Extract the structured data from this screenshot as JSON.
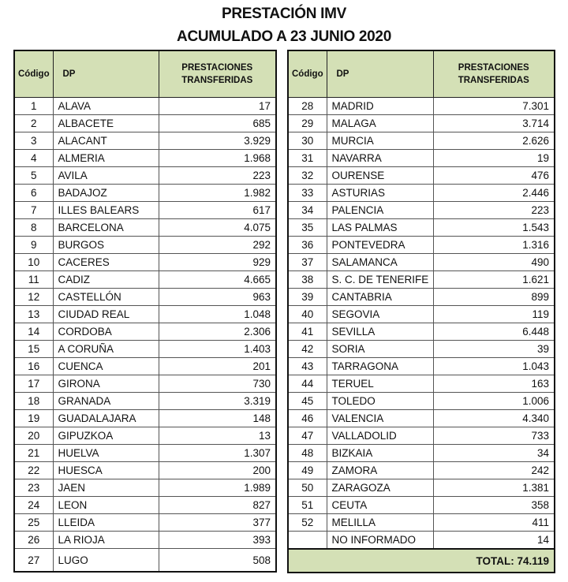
{
  "title": "PRESTACIÓN IMV",
  "subtitle": "ACUMULADO A 23 JUNIO 2020",
  "headers": {
    "code": "Código",
    "dp": "DP",
    "value": "PRESTACIONES TRANSFERIDAS"
  },
  "left_rows": [
    {
      "code": "1",
      "dp": "ALAVA",
      "value": "17"
    },
    {
      "code": "2",
      "dp": "ALBACETE",
      "value": "685"
    },
    {
      "code": "3",
      "dp": "ALACANT",
      "value": "3.929"
    },
    {
      "code": "4",
      "dp": "ALMERIA",
      "value": "1.968"
    },
    {
      "code": "5",
      "dp": "AVILA",
      "value": "223"
    },
    {
      "code": "6",
      "dp": "BADAJOZ",
      "value": "1.982"
    },
    {
      "code": "7",
      "dp": "ILLES BALEARS",
      "value": "617"
    },
    {
      "code": "8",
      "dp": "BARCELONA",
      "value": "4.075"
    },
    {
      "code": "9",
      "dp": "BURGOS",
      "value": "292"
    },
    {
      "code": "10",
      "dp": "CACERES",
      "value": "929"
    },
    {
      "code": "11",
      "dp": "CADIZ",
      "value": "4.665"
    },
    {
      "code": "12",
      "dp": "CASTELLÓN",
      "value": "963"
    },
    {
      "code": "13",
      "dp": "CIUDAD REAL",
      "value": "1.048"
    },
    {
      "code": "14",
      "dp": "CORDOBA",
      "value": "2.306"
    },
    {
      "code": "15",
      "dp": "A CORUÑA",
      "value": "1.403"
    },
    {
      "code": "16",
      "dp": "CUENCA",
      "value": "201"
    },
    {
      "code": "17",
      "dp": "GIRONA",
      "value": "730"
    },
    {
      "code": "18",
      "dp": "GRANADA",
      "value": "3.319"
    },
    {
      "code": "19",
      "dp": "GUADALAJARA",
      "value": "148"
    },
    {
      "code": "20",
      "dp": "GIPUZKOA",
      "value": "13"
    },
    {
      "code": "21",
      "dp": "HUELVA",
      "value": "1.307"
    },
    {
      "code": "22",
      "dp": "HUESCA",
      "value": "200"
    },
    {
      "code": "23",
      "dp": "JAEN",
      "value": "1.989"
    },
    {
      "code": "24",
      "dp": "LEON",
      "value": "827"
    },
    {
      "code": "25",
      "dp": "LLEIDA",
      "value": "377"
    },
    {
      "code": "26",
      "dp": "LA RIOJA",
      "value": "393"
    },
    {
      "code": "27",
      "dp": "LUGO",
      "value": "508"
    }
  ],
  "right_rows": [
    {
      "code": "28",
      "dp": "MADRID",
      "value": "7.301"
    },
    {
      "code": "29",
      "dp": "MALAGA",
      "value": "3.714"
    },
    {
      "code": "30",
      "dp": "MURCIA",
      "value": "2.626"
    },
    {
      "code": "31",
      "dp": "NAVARRA",
      "value": "19"
    },
    {
      "code": "32",
      "dp": "OURENSE",
      "value": "476"
    },
    {
      "code": "33",
      "dp": "ASTURIAS",
      "value": "2.446"
    },
    {
      "code": "34",
      "dp": "PALENCIA",
      "value": "223"
    },
    {
      "code": "35",
      "dp": "LAS PALMAS",
      "value": "1.543"
    },
    {
      "code": "36",
      "dp": "PONTEVEDRA",
      "value": "1.316"
    },
    {
      "code": "37",
      "dp": "SALAMANCA",
      "value": "490"
    },
    {
      "code": "38",
      "dp": "S. C. DE TENERIFE",
      "value": "1.621"
    },
    {
      "code": "39",
      "dp": "CANTABRIA",
      "value": "899"
    },
    {
      "code": "40",
      "dp": "SEGOVIA",
      "value": "119"
    },
    {
      "code": "41",
      "dp": "SEVILLA",
      "value": "6.448"
    },
    {
      "code": "42",
      "dp": "SORIA",
      "value": "39"
    },
    {
      "code": "43",
      "dp": "TARRAGONA",
      "value": "1.043"
    },
    {
      "code": "44",
      "dp": "TERUEL",
      "value": "163"
    },
    {
      "code": "45",
      "dp": "TOLEDO",
      "value": "1.006"
    },
    {
      "code": "46",
      "dp": "VALENCIA",
      "value": "4.340"
    },
    {
      "code": "47",
      "dp": "VALLADOLID",
      "value": "733"
    },
    {
      "code": "48",
      "dp": "BIZKAIA",
      "value": "34"
    },
    {
      "code": "49",
      "dp": "ZAMORA",
      "value": "242"
    },
    {
      "code": "50",
      "dp": "ZARAGOZA",
      "value": "1.381"
    },
    {
      "code": "51",
      "dp": "CEUTA",
      "value": "358"
    },
    {
      "code": "52",
      "dp": "MELILLA",
      "value": "411"
    },
    {
      "code": "",
      "dp": "NO INFORMADO",
      "value": "14"
    }
  ],
  "total": "TOTAL: 74.119",
  "colors": {
    "header_fill": "#d4e0b6"
  }
}
